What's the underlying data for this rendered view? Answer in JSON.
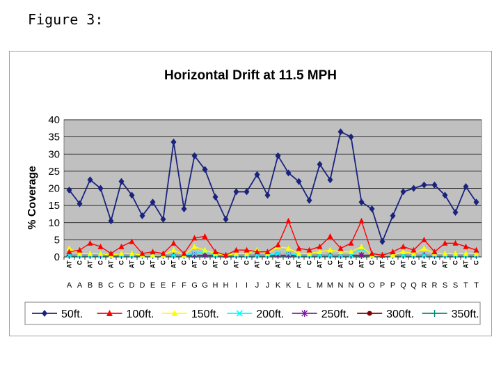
{
  "figure_caption": "Figure 3:",
  "chart_data": {
    "type": "line",
    "title": "Horizontal Drift at 11.5 MPH",
    "xlabel": "",
    "ylabel": "% Coverage",
    "ylim": [
      0,
      40
    ],
    "yticks": [
      0,
      5,
      10,
      15,
      20,
      25,
      30,
      35,
      40
    ],
    "grid": true,
    "legend_position": "bottom",
    "x_sublabels": [
      "AT",
      "C",
      "AT",
      "C",
      "AT",
      "C",
      "AT",
      "C",
      "AT",
      "C",
      "AT",
      "C",
      "AT",
      "C",
      "AT",
      "C",
      "AT",
      "C",
      "AT",
      "C",
      "AT",
      "C",
      "AT",
      "C",
      "AT",
      "C",
      "AT",
      "C",
      "AT",
      "C",
      "AT",
      "C",
      "AT",
      "C",
      "AT",
      "C",
      "AT",
      "C",
      "AT",
      "C"
    ],
    "categories": [
      "A",
      "A",
      "B",
      "B",
      "C",
      "C",
      "D",
      "D",
      "E",
      "E",
      "F",
      "F",
      "G",
      "G",
      "H",
      "H",
      "I",
      "I",
      "J",
      "J",
      "K",
      "K",
      "L",
      "L",
      "M",
      "M",
      "N",
      "N",
      "O",
      "O",
      "P",
      "P",
      "Q",
      "Q",
      "R",
      "R",
      "S",
      "S",
      "T",
      "T"
    ],
    "series": [
      {
        "name": "50ft.",
        "color": "#1a237e",
        "marker": "diamond",
        "values": [
          19.5,
          15.5,
          22.5,
          20,
          10.5,
          22,
          18,
          12,
          16,
          11,
          33.5,
          14,
          29.5,
          25.5,
          17.5,
          11,
          19,
          19,
          24,
          18,
          29.5,
          24.5,
          22,
          16.5,
          27,
          22.5,
          36.5,
          35,
          16,
          14,
          4.5,
          12,
          19,
          20,
          21,
          21,
          18,
          13,
          20.5,
          16
        ]
      },
      {
        "name": "100ft.",
        "color": "#ff0000",
        "marker": "triangle",
        "values": [
          1.5,
          2,
          4,
          3,
          1,
          3,
          4.5,
          1,
          1.5,
          1,
          4,
          1,
          5.5,
          6,
          1.5,
          0.5,
          2,
          2,
          1.5,
          1.5,
          3.5,
          10.5,
          2.5,
          2,
          3,
          6,
          2.5,
          4,
          10.5,
          1,
          0.5,
          1.5,
          3,
          2,
          5,
          1.5,
          4,
          4,
          3,
          2
        ]
      },
      {
        "name": "150ft.",
        "color": "#ffff00",
        "marker": "triangle",
        "values": [
          2.5,
          1,
          1,
          1,
          0.5,
          1,
          1,
          0.5,
          0.5,
          0.5,
          2,
          0.5,
          3,
          2,
          1,
          0.5,
          1,
          1,
          2,
          1,
          3,
          2.5,
          1,
          1,
          1.5,
          2,
          1.5,
          1.5,
          3,
          0.5,
          0.5,
          0.5,
          1.5,
          1,
          2.5,
          1,
          1,
          1,
          1,
          1
        ]
      },
      {
        "name": "200ft.",
        "color": "#00ffff",
        "marker": "x",
        "values": [
          0.5,
          0.5,
          0.5,
          0.5,
          0.5,
          0.5,
          0.5,
          0.5,
          0.5,
          0.5,
          0.5,
          0.5,
          1,
          1.5,
          0.5,
          0.5,
          0.5,
          0.5,
          0.5,
          0.5,
          1,
          1,
          0.5,
          0.5,
          0.5,
          0.5,
          0.5,
          0.5,
          2.5,
          0.5,
          0.5,
          0.5,
          0.5,
          0.5,
          0.5,
          0.5,
          0.5,
          0.5,
          0.5,
          0.5
        ]
      },
      {
        "name": "250ft.",
        "color": "#7b1fa2",
        "marker": "star",
        "values": [
          0.5,
          0.5,
          0.5,
          0.5,
          0.5,
          0.5,
          0.5,
          0.5,
          0.5,
          0.5,
          0.5,
          0.5,
          0.5,
          0.5,
          0.5,
          0.5,
          0.5,
          0.5,
          0.5,
          0.5,
          0.5,
          0.5,
          0.5,
          0.5,
          0.5,
          0.5,
          0.5,
          0.5,
          0.5,
          0.5,
          0.5,
          0.5,
          0.5,
          0.5,
          0.5,
          0.5,
          0.5,
          0.5,
          0.5,
          0.5
        ]
      },
      {
        "name": "300ft.",
        "color": "#7f0000",
        "marker": "circle",
        "values": [
          0.5,
          0.5,
          0.5,
          0.5,
          0.5,
          0.5,
          0.5,
          0.5,
          0.5,
          0.5,
          0.5,
          0.5,
          0.5,
          0.5,
          0.5,
          0.5,
          0.5,
          0.5,
          0.5,
          0.5,
          0.5,
          0.5,
          0.5,
          0.5,
          0.5,
          0.5,
          0.5,
          0.5,
          0.5,
          0.5,
          0.5,
          0.5,
          0.5,
          0.5,
          0.5,
          0.5,
          0.5,
          0.5,
          0.5,
          0.5
        ]
      },
      {
        "name": "350ft.",
        "color": "#00897b",
        "marker": "plus",
        "values": [
          0.3,
          0.3,
          0.3,
          0.3,
          0.3,
          0.3,
          0.3,
          0.3,
          0.3,
          0.3,
          0.3,
          0.3,
          0.3,
          0.3,
          0.3,
          0.3,
          0.3,
          0.3,
          0.3,
          0.3,
          0.3,
          0.3,
          0.3,
          0.3,
          0.3,
          0.3,
          0.3,
          0.3,
          0.3,
          0.3,
          0.3,
          0.3,
          0.3,
          0.3,
          0.3,
          0.3,
          0.3,
          0.3,
          0.3,
          0.3
        ]
      }
    ]
  }
}
